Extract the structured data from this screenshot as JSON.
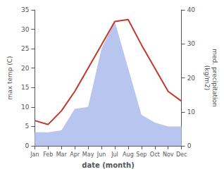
{
  "chart_data": {
    "type": "line",
    "xlabel": "date (month)",
    "ylabel": "max temp (C)",
    "y2label": "med. precipitation\n(kg/m2)",
    "categories": [
      "Jan",
      "Feb",
      "Mar",
      "Apr",
      "May",
      "Jun",
      "Jul",
      "Aug",
      "Sep",
      "Oct",
      "Nov",
      "Dec"
    ],
    "series": [
      {
        "type": "area",
        "color": "#b8c5ee",
        "values": [
          3.5,
          3.5,
          4.0,
          9.5,
          10.0,
          25.0,
          32.0,
          20.0,
          8.0,
          6.0,
          5.0,
          5.0
        ]
      },
      {
        "type": "line",
        "color": "#c0392b",
        "values": [
          6.5,
          5.5,
          9.0,
          14.0,
          20.0,
          26.0,
          32.0,
          32.5,
          26.0,
          20.0,
          14.0,
          11.5
        ]
      }
    ],
    "ylim": [
      0,
      35
    ],
    "yticks": [
      0,
      5,
      10,
      15,
      20,
      25,
      30,
      35
    ],
    "y2lim": [
      0,
      40
    ],
    "y2ticks": [
      0,
      10,
      20,
      30,
      40
    ],
    "grid": false
  }
}
